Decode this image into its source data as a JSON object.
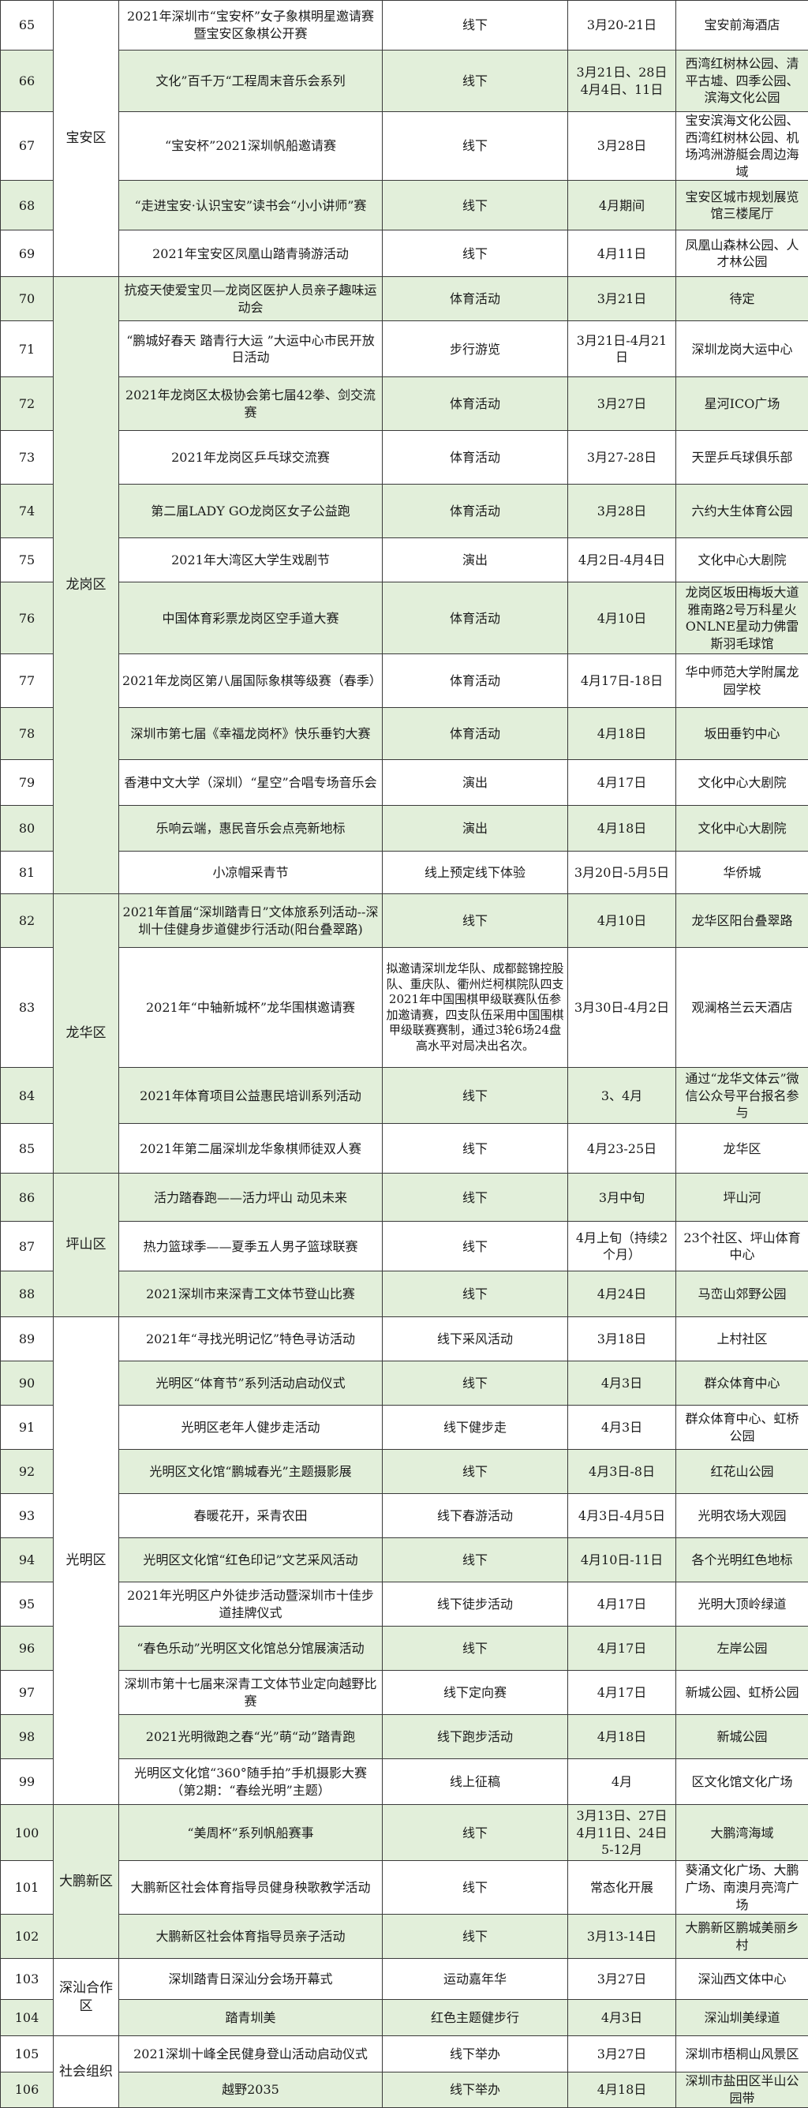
{
  "colors": {
    "row_shade": "#e2efda",
    "border": "#3a3a3a"
  },
  "districts": [
    {
      "name": "宝安区",
      "first": 65,
      "span": 5,
      "shaded": false
    },
    {
      "name": "龙岗区",
      "first": 70,
      "span": 12,
      "shaded": true
    },
    {
      "name": "龙华区",
      "first": 82,
      "span": 4,
      "shaded": true
    },
    {
      "name": "坪山区",
      "first": 86,
      "span": 3,
      "shaded": true
    },
    {
      "name": "光明区",
      "first": 89,
      "span": 11,
      "shaded": false
    },
    {
      "name": "大鹏新区",
      "first": 100,
      "span": 3,
      "shaded": true
    },
    {
      "name": "深汕合作区",
      "first": 103,
      "span": 2,
      "shaded": false
    },
    {
      "name": "社会组织",
      "first": 105,
      "span": 2,
      "shaded": false
    }
  ],
  "rows": [
    {
      "num": "65",
      "name": "2021年深圳市“宝安杯”女子象棋明星邀请赛暨宝安区象棋公开赛",
      "form": "线下",
      "date": "3月20-21日",
      "location": "宝安前海酒店"
    },
    {
      "num": "66",
      "name": "文化”百千万“工程周末音乐会系列",
      "form": "线下",
      "date": "3月21日、28日 4月4日、11日",
      "location": "西湾红树林公园、清平古墟、四季公园、滨海文化公园"
    },
    {
      "num": "67",
      "name": "“宝安杯”2021深圳帆船邀请赛",
      "form": "线下",
      "date": "3月28日",
      "location": "宝安滨海文化公园、西湾红树林公园、机场鸿洲游艇会周边海域"
    },
    {
      "num": "68",
      "name": "“走进宝安·认识宝安”读书会“小小讲师”赛",
      "form": "线下",
      "date": "4月期间",
      "location": "宝安区城市规划展览馆三楼尾厅"
    },
    {
      "num": "69",
      "name": "2021年宝安区凤凰山踏青骑游活动",
      "form": "线下",
      "date": "4月11日",
      "location": "凤凰山森林公园、人才林公园"
    },
    {
      "num": "70",
      "name": "抗疫天使爱宝贝—龙岗区医护人员亲子趣味运动会",
      "form": "体育活动",
      "date": "3月21日",
      "location": "待定"
    },
    {
      "num": "71",
      "name": "“鹏城好春天 踏青行大运 ”大运中心市民开放日活动",
      "form": "步行游览",
      "date": "3月21日-4月21日",
      "location": "深圳龙岗大运中心"
    },
    {
      "num": "72",
      "name": "2021年龙岗区太极协会第七届42拳、剑交流赛",
      "form": "体育活动",
      "date": "3月27日",
      "location": "星河ICO广场"
    },
    {
      "num": "73",
      "name": "2021年龙岗区乒乓球交流赛",
      "form": "体育活动",
      "date": "3月27-28日",
      "location": "天罡乒乓球俱乐部"
    },
    {
      "num": "74",
      "name": "第二届LADY GO龙岗区女子公益跑",
      "form": "体育活动",
      "date": "3月28日",
      "location": "六约大生体育公园"
    },
    {
      "num": "75",
      "name": "2021年大湾区大学生戏剧节",
      "form": "演出",
      "date": "4月2日-4月4日",
      "location": "文化中心大剧院"
    },
    {
      "num": "76",
      "name": "中国体育彩票龙岗区空手道大赛",
      "form": "体育活动",
      "date": "4月10日",
      "location": "龙岗区坂田梅坂大道雅南路2号万科星火ONLNE星动力佛雷斯羽毛球馆"
    },
    {
      "num": "77",
      "name": "2021年龙岗区第八届国际象棋等级赛（春季）",
      "form": "体育活动",
      "date": "4月17日-18日",
      "location": "华中师范大学附属龙园学校"
    },
    {
      "num": "78",
      "name": "深圳市第七届《幸福龙岗杯》快乐垂钓大赛",
      "form": "体育活动",
      "date": "4月18日",
      "location": "坂田垂钓中心"
    },
    {
      "num": "79",
      "name": "香港中文大学（深圳）“星空”合唱专场音乐会",
      "form": "演出",
      "date": "4月17日",
      "location": "文化中心大剧院"
    },
    {
      "num": "80",
      "name": "乐响云端，惠民音乐会点亮新地标",
      "form": "演出",
      "date": "4月18日",
      "location": "文化中心大剧院"
    },
    {
      "num": "81",
      "name": "小凉帽采青节",
      "form": "线上预定线下体验",
      "date": "3月20日-5月5日",
      "location": "华侨城"
    },
    {
      "num": "82",
      "name": "2021年首届“深圳踏青日”文体旅系列活动--深圳十佳健身步道健步行活动(阳台叠翠路)",
      "form": "线下",
      "date": "4月10日",
      "location": "龙华区阳台叠翠路"
    },
    {
      "num": "83",
      "name": "2021年“中轴新城杯”龙华围棋邀请赛",
      "form": "拟邀请深圳龙华队、成都懿锦控股队、重庆队、衢州烂柯棋院队四支2021年中国围棋甲级联赛队伍参加邀请赛，四支队伍采用中国围棋甲级联赛赛制，通过3轮6场24盘高水平对局决出名次。",
      "date": "3月30日-4月2日",
      "location": "观澜格兰云天酒店"
    },
    {
      "num": "84",
      "name": "2021年体育项目公益惠民培训系列活动",
      "form": "线下",
      "date": "3、4月",
      "location": "通过“龙华文体云”微信公众号平台报名参与"
    },
    {
      "num": "85",
      "name": "2021年第二届深圳龙华象棋师徒双人赛",
      "form": "线下",
      "date": "4月23-25日",
      "location": "龙华区"
    },
    {
      "num": "86",
      "name": "活力踏春跑——活力坪山 动见未来",
      "form": "线下",
      "date": "3月中旬",
      "location": "坪山河"
    },
    {
      "num": "87",
      "name": "热力篮球季——夏季五人男子篮球联赛",
      "form": "线下",
      "date": "4月上旬（持续2个月）",
      "location": "23个社区、坪山体育中心"
    },
    {
      "num": "88",
      "name": "2021深圳市来深青工文体节登山比赛",
      "form": "线下",
      "date": "4月24日",
      "location": "马峦山郊野公园"
    },
    {
      "num": "89",
      "name": "2021年“寻找光明记忆”特色寻访活动",
      "form": "线下采风活动",
      "date": "3月18日",
      "location": "上村社区"
    },
    {
      "num": "90",
      "name": "光明区“体育节”系列活动启动仪式",
      "form": "线下",
      "date": "4月3日",
      "location": "群众体育中心"
    },
    {
      "num": "91",
      "name": "光明区老年人健步走活动",
      "form": "线下健步走",
      "date": "4月3日",
      "location": "群众体育中心、虹桥公园"
    },
    {
      "num": "92",
      "name": "光明区文化馆“鹏城春光”主题摄影展",
      "form": "线下",
      "date": "4月3日-8日",
      "location": "红花山公园"
    },
    {
      "num": "93",
      "name": "春暖花开，采青农田",
      "form": "线下春游活动",
      "date": "4月3日-4月5日",
      "location": "光明农场大观园"
    },
    {
      "num": "94",
      "name": "光明区文化馆“红色印记”文艺采风活动",
      "form": "线下",
      "date": "4月10日-11日",
      "location": "各个光明红色地标"
    },
    {
      "num": "95",
      "name": "2021年光明区户外徒步活动暨深圳市十佳步道挂牌仪式",
      "form": "线下徒步活动",
      "date": "4月17日",
      "location": "光明大顶岭绿道"
    },
    {
      "num": "96",
      "name": "“春色乐动”光明区文化馆总分馆展演活动",
      "form": "线下",
      "date": "4月17日",
      "location": "左岸公园"
    },
    {
      "num": "97",
      "name": "深圳市第十七届来深青工文体节业定向越野比赛",
      "form": "线下定向赛",
      "date": "4月17日",
      "location": "新城公园、虹桥公园"
    },
    {
      "num": "98",
      "name": "2021光明微跑之春“光”萌“动”踏青跑",
      "form": "线下跑步活动",
      "date": "4月18日",
      "location": "新城公园"
    },
    {
      "num": "99",
      "name": "光明区文化馆“360°随手拍”手机摄影大赛（第2期：“春绘光明”主题）",
      "form": "线上征稿",
      "date": "4月",
      "location": "区文化馆文化广场"
    },
    {
      "num": "100",
      "name": "“美周杯”系列帆船赛事",
      "form": "线下",
      "date": "3月13日、27日 4月11日、24日 5-12月",
      "location": "大鹏湾海域"
    },
    {
      "num": "101",
      "name": "大鹏新区社会体育指导员健身秧歌教学活动",
      "form": "线下",
      "date": "常态化开展",
      "location": "葵涌文化广场、大鹏广场、南澳月亮湾广场"
    },
    {
      "num": "102",
      "name": "大鹏新区社会体育指导员亲子活动",
      "form": "线下",
      "date": "3月13-14日",
      "location": "大鹏新区鹏城美丽乡村"
    },
    {
      "num": "103",
      "name": "深圳踏青日深汕分会场开幕式",
      "form": "运动嘉年华",
      "date": "3月27日",
      "location": "深汕西文体中心"
    },
    {
      "num": "104",
      "name": "踏青圳美",
      "form": "红色主题健步行",
      "date": "4月3日",
      "location": "深汕圳美绿道"
    },
    {
      "num": "105",
      "name": "2021深圳十峰全民健身登山活动启动仪式",
      "form": "线下举办",
      "date": "3月27日",
      "location": "深圳市梧桐山风景区"
    },
    {
      "num": "106",
      "name": "越野2035",
      "form": "线下举办",
      "date": "4月18日",
      "location": "深圳市盐田区半山公园带"
    }
  ]
}
